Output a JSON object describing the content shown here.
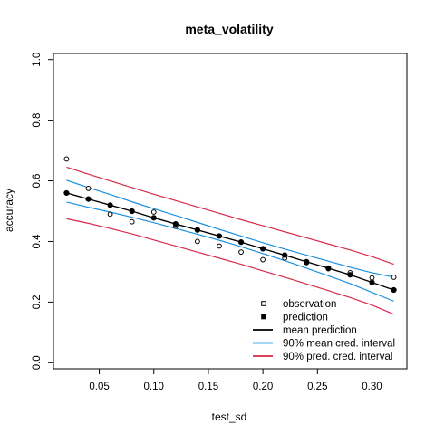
{
  "chart_data": {
    "type": "scatter",
    "title": "meta_volatility",
    "xlabel": "test_sd",
    "ylabel": "accuracy",
    "xlim": [
      0.008,
      0.332
    ],
    "ylim": [
      -0.02,
      1.02
    ],
    "x_ticks": [
      "0.05",
      "0.10",
      "0.15",
      "0.20",
      "0.25",
      "0.30"
    ],
    "y_ticks": [
      "0.0",
      "0.2",
      "0.4",
      "0.6",
      "0.8",
      "1.0"
    ],
    "grid": false,
    "legend_position": "bottom-right",
    "x": [
      0.02,
      0.04,
      0.06,
      0.08,
      0.1,
      0.12,
      0.14,
      0.16,
      0.18,
      0.2,
      0.22,
      0.24,
      0.26,
      0.28,
      0.3,
      0.32
    ],
    "series": [
      {
        "name": "observation",
        "marker": "open-circle",
        "color": "#000000",
        "values": [
          0.672,
          0.575,
          0.49,
          0.465,
          0.497,
          0.45,
          0.4,
          0.385,
          0.365,
          0.34,
          0.345,
          0.33,
          0.31,
          0.297,
          0.28,
          0.282
        ]
      },
      {
        "name": "prediction",
        "marker": "filled-circle",
        "color": "#000000",
        "values": [
          0.56,
          0.54,
          0.52,
          0.5,
          0.478,
          0.458,
          0.438,
          0.418,
          0.398,
          0.376,
          0.355,
          0.333,
          0.312,
          0.29,
          0.265,
          0.24
        ]
      },
      {
        "name": "mean prediction",
        "line": true,
        "color": "#000000",
        "values": [
          0.56,
          0.54,
          0.52,
          0.5,
          0.478,
          0.458,
          0.438,
          0.418,
          0.398,
          0.376,
          0.355,
          0.333,
          0.312,
          0.29,
          0.265,
          0.24
        ]
      },
      {
        "name": "90% mean cred. interval",
        "line": true,
        "color": "#1a8fe0",
        "lower": [
          0.53,
          0.513,
          0.497,
          0.48,
          0.462,
          0.443,
          0.424,
          0.404,
          0.383,
          0.36,
          0.337,
          0.312,
          0.287,
          0.261,
          0.232,
          0.203
        ],
        "upper": [
          0.602,
          0.578,
          0.555,
          0.531,
          0.508,
          0.486,
          0.463,
          0.44,
          0.418,
          0.396,
          0.375,
          0.355,
          0.335,
          0.315,
          0.297,
          0.282
        ]
      },
      {
        "name": "90% pred. cred. interval",
        "line": true,
        "color": "#d62a4a",
        "lower": [
          0.475,
          0.46,
          0.443,
          0.425,
          0.405,
          0.385,
          0.365,
          0.345,
          0.325,
          0.303,
          0.282,
          0.26,
          0.238,
          0.215,
          0.19,
          0.16
        ],
        "upper": [
          0.645,
          0.622,
          0.6,
          0.578,
          0.556,
          0.535,
          0.514,
          0.493,
          0.472,
          0.452,
          0.432,
          0.412,
          0.392,
          0.372,
          0.35,
          0.325
        ]
      }
    ]
  }
}
